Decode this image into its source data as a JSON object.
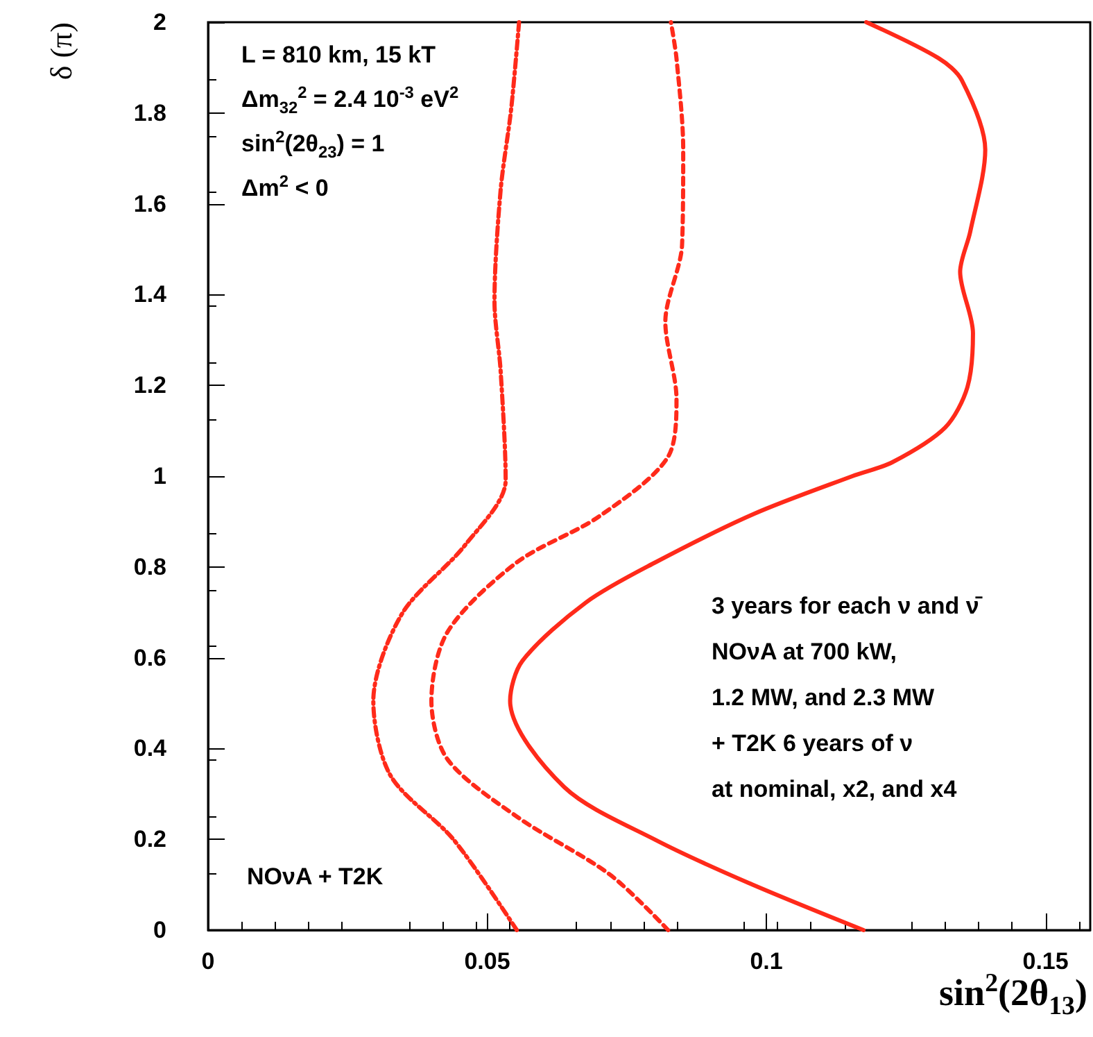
{
  "chart_data": {
    "type": "line",
    "xlabel": "sin$^{2}$(2θ$_{13}$)",
    "ylabel": "δ (π)",
    "xlim": [
      0,
      0.158
    ],
    "xticks": [
      0,
      0.05,
      0.1,
      0.15
    ],
    "ylim": [
      0,
      2
    ],
    "yticks": [
      0,
      0.2,
      0.4,
      0.6,
      0.8,
      1,
      1.2,
      1.4,
      1.6,
      1.8,
      2
    ],
    "grid": false,
    "marker": "none",
    "series": [
      {
        "color": "#ff2a1a",
        "line_style": "solid",
        "x": [
          0.1174,
          0.0968,
          0.0801,
          0.0638,
          0.0541,
          0.0563,
          0.0677,
          0.0801,
          0.0978,
          0.1154,
          0.1226,
          0.132,
          0.136,
          0.137,
          0.1347,
          0.1365,
          0.1392,
          0.135,
          0.1308,
          0.1179
        ],
        "values": [
          0,
          0.104,
          0.199,
          0.315,
          0.505,
          0.593,
          0.722,
          0.81,
          0.917,
          1.0,
          1.031,
          1.107,
          1.196,
          1.315,
          1.45,
          1.538,
          1.719,
          1.872,
          1.921,
          2.0
        ]
      },
      {
        "color": "#ff2a1a",
        "line_style": "dashed",
        "x": [
          0.0824,
          0.072,
          0.0553,
          0.0429,
          0.04,
          0.0429,
          0.0553,
          0.07,
          0.0824,
          0.0839,
          0.0819,
          0.0849,
          0.0851,
          0.0839,
          0.0829
        ],
        "values": [
          0,
          0.122,
          0.25,
          0.376,
          0.505,
          0.657,
          0.81,
          0.911,
          1.043,
          1.17,
          1.34,
          1.51,
          1.72,
          1.92,
          2.0
        ]
      },
      {
        "color": "#ff2a1a",
        "line_style": "dotted",
        "x": [
          0.0553,
          0.044,
          0.0327,
          0.0296,
          0.0347,
          0.0461,
          0.0533,
          0.0524,
          0.0513,
          0.0524,
          0.0543,
          0.0557
        ],
        "values": [
          0,
          0.199,
          0.34,
          0.505,
          0.696,
          0.849,
          0.991,
          1.232,
          1.385,
          1.63,
          1.81,
          2.0
        ]
      }
    ],
    "annotations": [
      "L = 810 km, 15 kT",
      "Δm$_{32}$$^{2}$ = 2.4 10$^{-3}$ eV$^{2}$",
      "sin$^{2}$(2θ$_{23}$) = 1",
      "Δm$^{2}$ < 0",
      "3 years for each ν and ν̄",
      "NOνA at 700 kW,",
      "1.2 MW, and 2.3 MW",
      "+ T2K 6 years of ν",
      "at nominal, x2, and x4",
      "NOνA + T2K"
    ]
  }
}
